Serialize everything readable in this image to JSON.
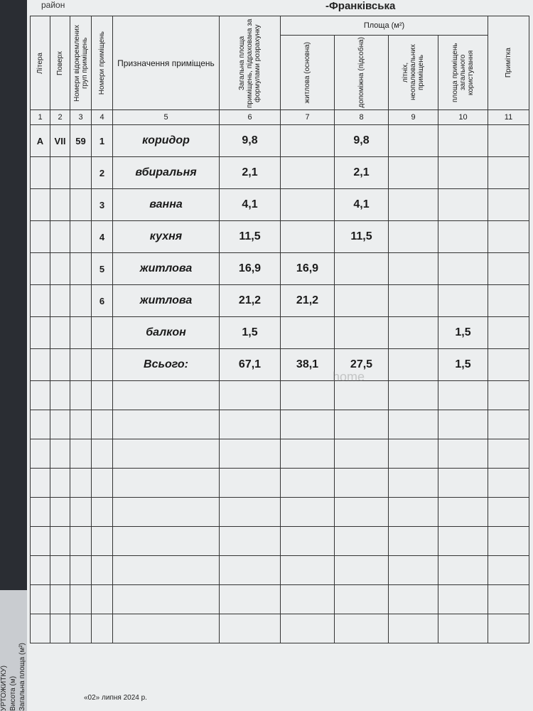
{
  "header": {
    "district_label": "район",
    "city": "-Франківська"
  },
  "table": {
    "area_group": "Площа (м²)",
    "columns": [
      "Літера",
      "Поверх",
      "Номери відокремлених груп приміщень",
      "Номери приміщень",
      "Призначення приміщень",
      "Загальна площа приміщень, підрахована за формулами розрахунку",
      "житлова (основна)",
      "допоміжна (підсобна)",
      "літніх, неопалювальних приміщень",
      "площа приміщень загального користування",
      "Примітка"
    ],
    "column_numbers": [
      "1",
      "2",
      "3",
      "4",
      "5",
      "6",
      "7",
      "8",
      "9",
      "10",
      "11"
    ],
    "rows": [
      [
        "А",
        "VII",
        "59",
        "1",
        "коридор",
        "9,8",
        null,
        "9,8",
        null,
        null,
        null
      ],
      [
        null,
        null,
        null,
        "2",
        "вбиральня",
        "2,1",
        null,
        "2,1",
        null,
        null,
        null
      ],
      [
        null,
        null,
        null,
        "3",
        "ванна",
        "4,1",
        null,
        "4,1",
        null,
        null,
        null
      ],
      [
        null,
        null,
        null,
        "4",
        "кухня",
        "11,5",
        null,
        "11,5",
        null,
        null,
        null
      ],
      [
        null,
        null,
        null,
        "5",
        "житлова",
        "16,9",
        "16,9",
        null,
        null,
        null,
        null
      ],
      [
        null,
        null,
        null,
        "6",
        "житлова",
        "21,2",
        "21,2",
        null,
        null,
        null,
        null
      ],
      [
        null,
        null,
        null,
        null,
        "балкон",
        "1,5",
        null,
        null,
        null,
        "1,5",
        null
      ]
    ],
    "total": [
      null,
      null,
      null,
      null,
      "Всього:",
      "67,1",
      "38,1",
      "27,5",
      null,
      "1,5",
      null
    ]
  },
  "watermark": "home",
  "side": {
    "title": "УРТОЖИТКУ)",
    "height": "Висота (м)",
    "area": "Загальна площа (м²)"
  },
  "footer": {
    "date": "«02» липня 2024 р."
  }
}
